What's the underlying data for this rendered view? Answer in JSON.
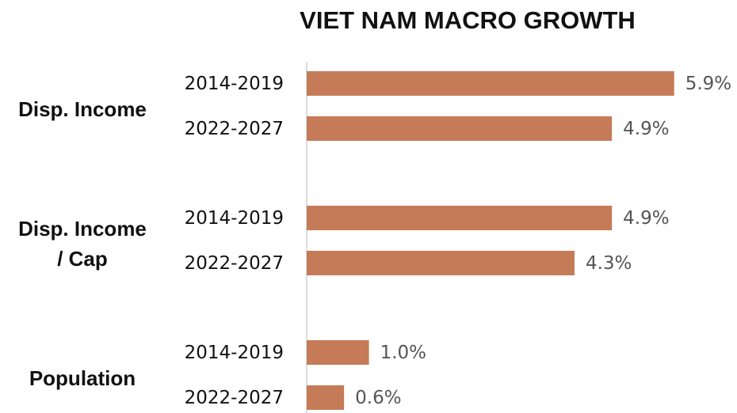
{
  "chart_data": {
    "type": "grouped-hbar",
    "title": "VIET NAM MACRO GROWTH",
    "color": "#c57b57",
    "groups": [
      {
        "name": "Disp. Income",
        "categories": [
          "2014-2019",
          "2022-2027"
        ],
        "values": [
          5.9,
          4.9
        ],
        "value_labels": [
          "5.9%",
          "4.9%"
        ]
      },
      {
        "name": "Disp. Income / Cap",
        "categories": [
          "2014-2019",
          "2022-2027"
        ],
        "values": [
          4.9,
          4.3
        ],
        "value_labels": [
          "4.9%",
          "4.3%"
        ]
      },
      {
        "name": "Population",
        "categories": [
          "2014-2019",
          "2022-2027"
        ],
        "values": [
          1.0,
          0.6
        ],
        "value_labels": [
          "1.0%",
          "0.6%"
        ]
      }
    ]
  }
}
